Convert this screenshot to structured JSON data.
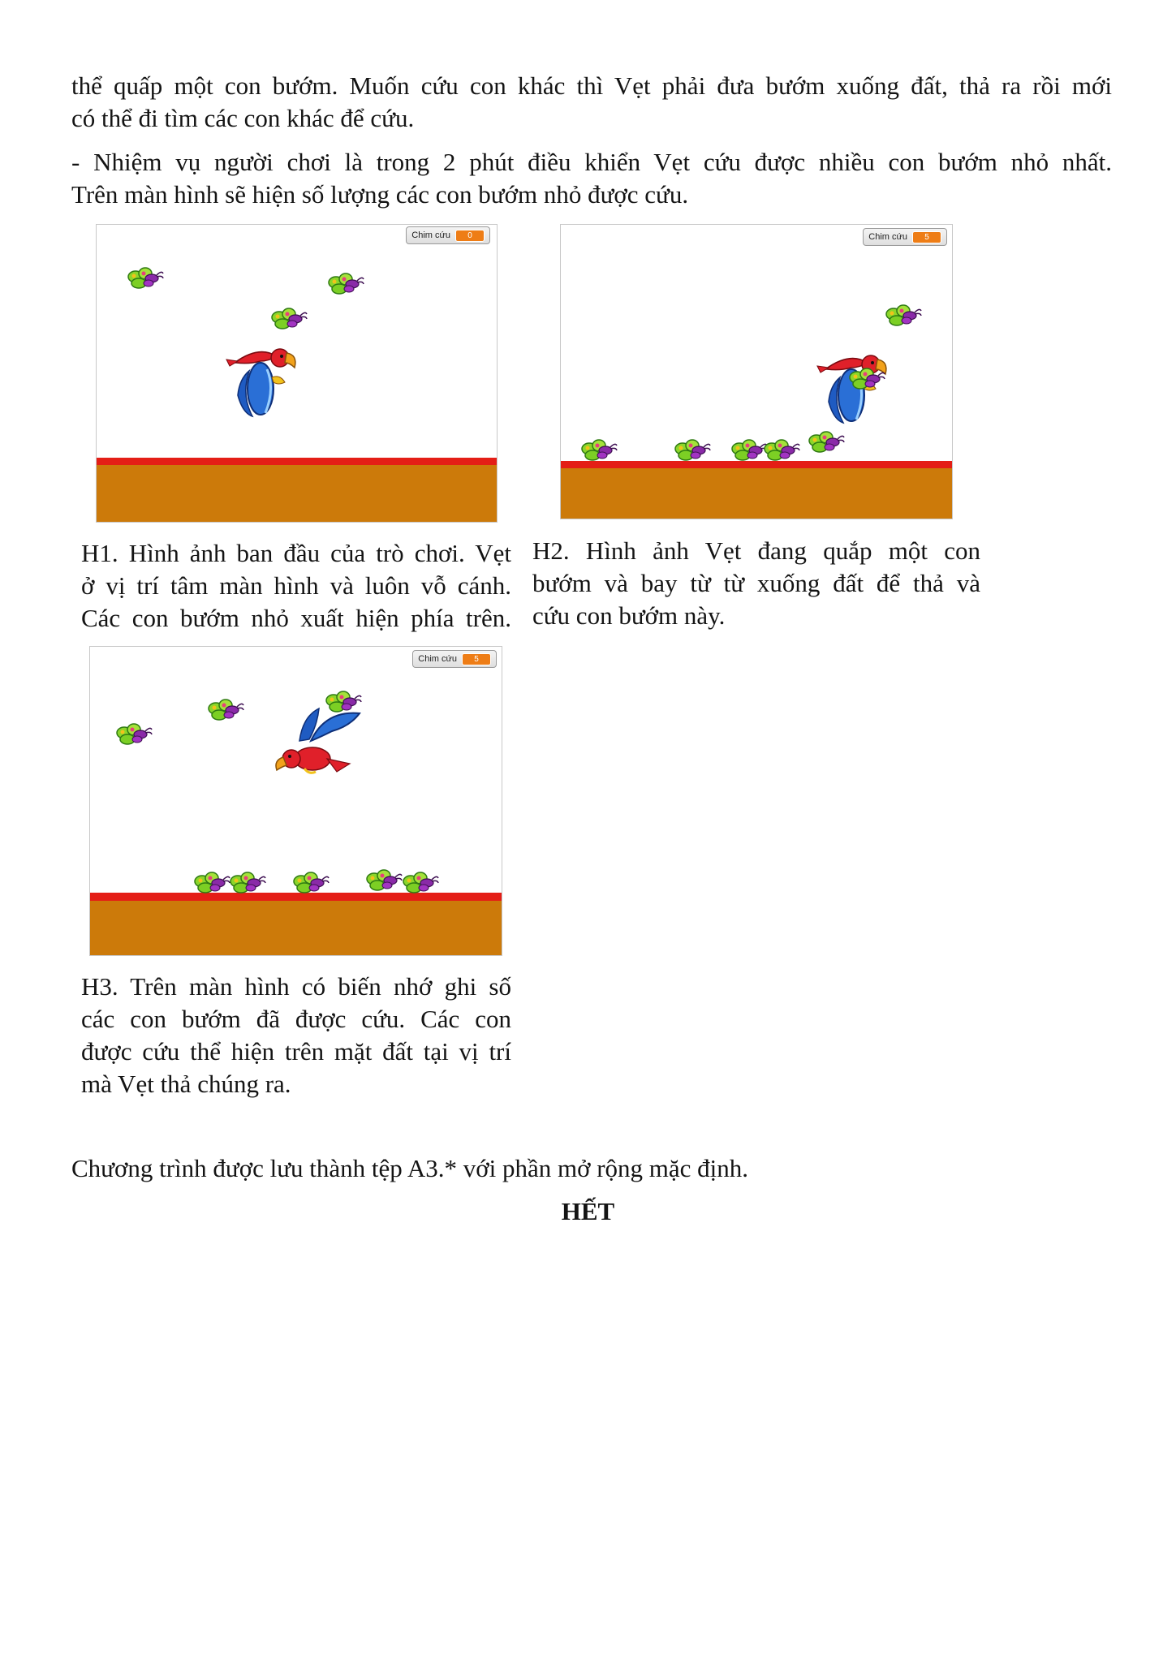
{
  "intro": {
    "p1": [
      "thể quấp một con bướm. Muốn cứu con khác thì Vẹt phải đưa bướm xuống đất, thả ra rồi mới",
      "có thể đi tìm các con khác để cứu."
    ],
    "p2": [
      "- Nhiệm vụ người chơi là trong 2 phút điều khiển Vẹt cứu được nhiều con bướm nhỏ nhất.",
      "Trên màn hình sẽ hiện số lượng các con bướm nhỏ được cứu."
    ]
  },
  "figures": [
    {
      "monitor_label": "Chim cứu",
      "monitor_value": "0",
      "caption": [
        "H1. Hình ảnh ban đầu của trò chơi. Vẹt",
        "ở vị trí tâm màn hình và luôn vỗ cánh.",
        "Các con bướm nhỏ xuất hiện phía trên."
      ]
    },
    {
      "monitor_label": "Chim cứu",
      "monitor_value": "5",
      "caption": [
        "H2. Hình ảnh Vẹt đang quắp một con",
        "bướm và bay từ từ xuống đất để thả và",
        "cứu con bướm này."
      ]
    },
    {
      "monitor_label": "Chim cứu",
      "monitor_value": "5",
      "caption": [
        "H3. Trên màn hình có biến nhớ ghi số",
        "các con bướm đã được cứu. Các con",
        "được cứu thể hiện trên mặt đất tại vị trí",
        "mà Vẹt thả chúng ra."
      ]
    }
  ],
  "closing": "Chương trình được lưu thành tệp A3.* với phần mở rộng mặc định.",
  "end_mark": "HẾT",
  "colors": {
    "ground": "#cc7a0a",
    "ground_line": "#e41e16",
    "monitor_value_bg": "#ee7d16"
  },
  "icons": [
    "parrot-sprite",
    "butterfly-sprite"
  ]
}
